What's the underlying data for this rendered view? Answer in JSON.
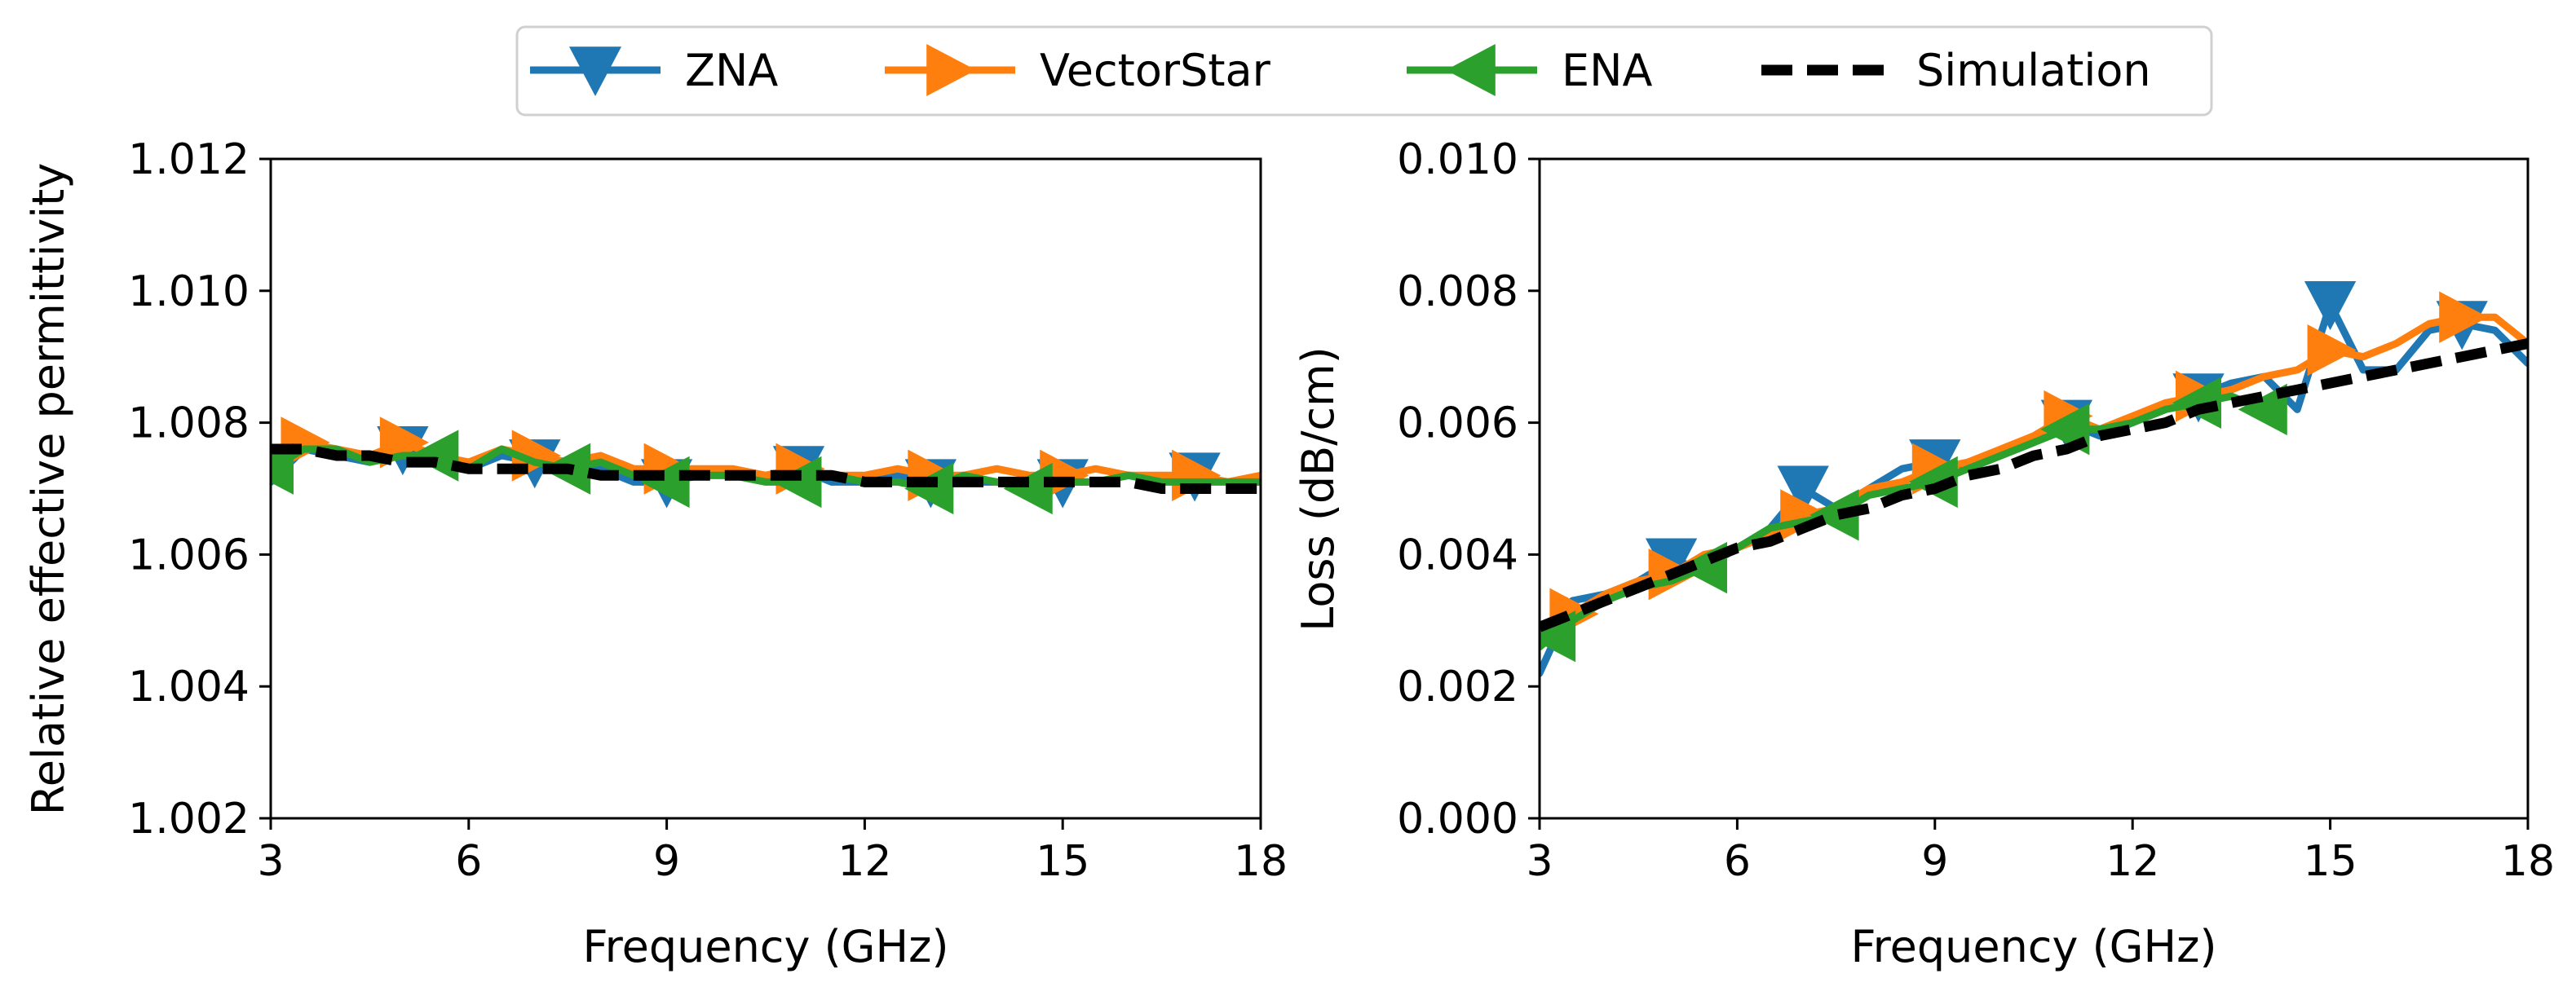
{
  "legend": {
    "items": [
      {
        "label": "ZNA",
        "color": "#1f77b4",
        "marker": "triangle-down",
        "dashed": false
      },
      {
        "label": "VectorStar",
        "color": "#ff7f0e",
        "marker": "triangle-right",
        "dashed": false
      },
      {
        "label": "ENA",
        "color": "#2ca02c",
        "marker": "triangle-left",
        "dashed": false
      },
      {
        "label": "Simulation",
        "color": "#000000",
        "marker": "none",
        "dashed": true
      }
    ]
  },
  "chart_data": [
    {
      "type": "line",
      "title": "",
      "xlabel": "Frequency (GHz)",
      "ylabel": "Relative effective permittivity",
      "xlim": [
        3,
        18
      ],
      "ylim": [
        1.002,
        1.012
      ],
      "xticks": [
        3,
        6,
        9,
        12,
        15,
        18
      ],
      "yticks": [
        "1.002",
        "1.004",
        "1.006",
        "1.008",
        "1.010",
        "1.012"
      ],
      "x": [
        3,
        3.5,
        4,
        4.5,
        5,
        5.5,
        6,
        6.5,
        7,
        7.5,
        8,
        8.5,
        9,
        9.5,
        10,
        10.5,
        11,
        11.5,
        12,
        12.5,
        13,
        13.5,
        14,
        14.5,
        15,
        15.5,
        16,
        16.5,
        17,
        17.5,
        18
      ],
      "series": [
        {
          "name": "ZNA",
          "color": "#1f77b4",
          "marker": "triangle-down",
          "marker_x": [
            5,
            7,
            9,
            11,
            13,
            15,
            17
          ],
          "values": [
            1.0071,
            1.0076,
            1.0075,
            1.0074,
            1.0076,
            1.0074,
            1.0073,
            1.0075,
            1.0074,
            1.0073,
            1.0073,
            1.0071,
            1.0071,
            1.0072,
            1.0072,
            1.0072,
            1.0073,
            1.0071,
            1.0071,
            1.0072,
            1.0071,
            1.0071,
            1.0071,
            1.0071,
            1.0071,
            1.0071,
            1.0072,
            1.0071,
            1.0072,
            1.0071,
            1.0071
          ]
        },
        {
          "name": "VectorStar",
          "color": "#ff7f0e",
          "marker": "triangle-right",
          "marker_x": [
            3.5,
            5,
            7,
            9,
            11,
            13,
            15,
            17
          ],
          "values": [
            1.0074,
            1.0077,
            1.0076,
            1.0075,
            1.0077,
            1.0075,
            1.0074,
            1.0076,
            1.0075,
            1.0074,
            1.0075,
            1.0073,
            1.0073,
            1.0073,
            1.0073,
            1.0072,
            1.0073,
            1.0072,
            1.0072,
            1.0073,
            1.0072,
            1.0072,
            1.0073,
            1.0072,
            1.0072,
            1.0073,
            1.0072,
            1.0072,
            1.0072,
            1.0071,
            1.0072
          ]
        },
        {
          "name": "ENA",
          "color": "#2ca02c",
          "marker": "triangle-left",
          "marker_x": [
            3,
            5.5,
            7.5,
            9,
            11,
            13,
            14.5
          ],
          "values": [
            1.0073,
            1.0076,
            1.0076,
            1.0074,
            1.0075,
            1.0075,
            1.0073,
            1.0076,
            1.0074,
            1.0073,
            1.0074,
            1.0072,
            1.0071,
            1.0072,
            1.0072,
            1.0071,
            1.0071,
            1.0072,
            1.0071,
            1.0071,
            1.007,
            1.0072,
            1.0071,
            1.007,
            1.0071,
            1.0071,
            1.0072,
            1.0071,
            1.0071,
            1.0071,
            1.0071
          ]
        },
        {
          "name": "Simulation",
          "color": "#000000",
          "dashed": true,
          "values": [
            1.0076,
            1.0076,
            1.0075,
            1.0075,
            1.0074,
            1.0074,
            1.0073,
            1.0073,
            1.0073,
            1.0073,
            1.0072,
            1.0072,
            1.0072,
            1.0072,
            1.0072,
            1.0072,
            1.0072,
            1.0072,
            1.0071,
            1.0071,
            1.0071,
            1.0071,
            1.0071,
            1.0071,
            1.0071,
            1.0071,
            1.0071,
            1.007,
            1.007,
            1.007,
            1.007
          ]
        }
      ]
    },
    {
      "type": "line",
      "title": "",
      "xlabel": "Frequency (GHz)",
      "ylabel": "Loss (dB/cm)",
      "xlim": [
        3,
        18
      ],
      "ylim": [
        0.0,
        0.01
      ],
      "xticks": [
        3,
        6,
        9,
        12,
        15,
        18
      ],
      "yticks": [
        "0.000",
        "0.002",
        "0.004",
        "0.006",
        "0.008",
        "0.010"
      ],
      "x": [
        3,
        3.5,
        4,
        4.5,
        5,
        5.5,
        6,
        6.5,
        7,
        7.5,
        8,
        8.5,
        9,
        9.5,
        10,
        10.5,
        11,
        11.5,
        12,
        12.5,
        13,
        13.5,
        14,
        14.5,
        15,
        15.5,
        16,
        16.5,
        17,
        17.5,
        18
      ],
      "series": [
        {
          "name": "ZNA",
          "color": "#1f77b4",
          "marker": "triangle-down",
          "marker_x": [
            5,
            7,
            9,
            11,
            13,
            15,
            17
          ],
          "values": [
            0.0022,
            0.0033,
            0.0034,
            0.0036,
            0.0039,
            0.0038,
            0.0041,
            0.0044,
            0.005,
            0.0047,
            0.005,
            0.0053,
            0.0054,
            0.0053,
            0.0055,
            0.0057,
            0.006,
            0.0058,
            0.006,
            0.0062,
            0.0064,
            0.0066,
            0.0067,
            0.0062,
            0.0078,
            0.0068,
            0.0068,
            0.0074,
            0.0075,
            0.0074,
            0.0069
          ]
        },
        {
          "name": "VectorStar",
          "color": "#ff7f0e",
          "marker": "triangle-right",
          "marker_x": [
            3.5,
            5,
            7,
            9,
            11,
            13,
            15,
            17
          ],
          "values": [
            0.0028,
            0.0031,
            0.0034,
            0.0036,
            0.0037,
            0.004,
            0.0041,
            0.0043,
            0.0046,
            0.0047,
            0.005,
            0.0051,
            0.0053,
            0.0054,
            0.0056,
            0.0058,
            0.0061,
            0.0059,
            0.0061,
            0.0063,
            0.0064,
            0.0065,
            0.0067,
            0.0068,
            0.0071,
            0.007,
            0.0072,
            0.0075,
            0.0076,
            0.0076,
            0.0072
          ]
        },
        {
          "name": "ENA",
          "color": "#2ca02c",
          "marker": "triangle-left",
          "marker_x": [
            3.2,
            5.5,
            7.5,
            9,
            11,
            13,
            14
          ],
          "values": [
            0.0026,
            0.003,
            0.0033,
            0.0035,
            0.0036,
            0.0038,
            0.0041,
            0.0044,
            0.0045,
            0.0046,
            0.0049,
            0.005,
            0.0051,
            0.0053,
            0.0055,
            0.0057,
            0.0059,
            0.0059,
            0.006,
            0.0062,
            0.0063,
            0.0064,
            0.0062,
            null,
            null,
            null,
            null,
            null,
            null,
            null,
            null
          ]
        },
        {
          "name": "Simulation",
          "color": "#000000",
          "dashed": true,
          "values": [
            0.0029,
            0.0031,
            0.0033,
            0.0035,
            0.0037,
            0.0039,
            0.0041,
            0.0042,
            0.0044,
            0.0046,
            0.0047,
            0.0049,
            0.005,
            0.0052,
            0.0053,
            0.0055,
            0.0056,
            0.0058,
            0.0059,
            0.006,
            0.0062,
            0.0063,
            0.0064,
            0.0065,
            0.0066,
            0.0067,
            0.0068,
            0.0069,
            0.007,
            0.0071,
            0.0072
          ]
        }
      ]
    }
  ]
}
